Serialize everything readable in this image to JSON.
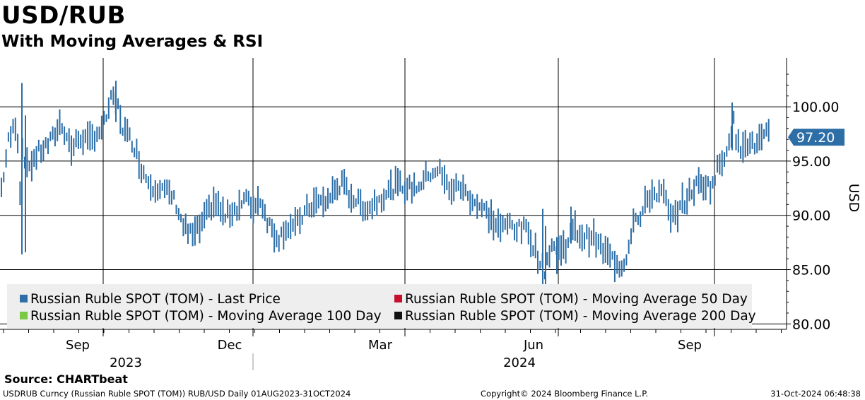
{
  "title": "USD/RUB",
  "subtitle": "With Moving Averages & RSI",
  "source": "Source: CHARTbeat",
  "footer": {
    "left": "USDRUB Curncy (Russian Ruble SPOT (TOM)) RUB/USD  Daily 01AUG2023-31OCT2024",
    "center": "Copyright© 2024 Bloomberg Finance L.P.",
    "right": "31-Oct-2024 06:48:38"
  },
  "colors": {
    "last_price": "#2d6ea6",
    "ma50": "#c8102e",
    "ma100": "#7ac943",
    "ma200": "#111111",
    "label_bg": "#2d6ea6"
  },
  "chart_data": {
    "type": "bar",
    "style": "ohlc-daily",
    "yaxis_label": "USD",
    "ylim": [
      79.5,
      104.5
    ],
    "yticks": [
      "100.00",
      "95.00",
      "90.00",
      "85.00",
      "80.00"
    ],
    "ytick_values": [
      100,
      95,
      90,
      85,
      80
    ],
    "last_value_label": "97.20",
    "last_value": 97.2,
    "month_ticks": [
      "Sep",
      "Dec",
      "Mar",
      "Jun",
      "Sep"
    ],
    "year_labels": [
      "2023",
      "2024"
    ],
    "legend": [
      "Russian Ruble SPOT (TOM) - Last Price",
      "Russian Ruble SPOT (TOM) - Moving Average 50 Day",
      "Russian Ruble SPOT (TOM) - Moving Average 100 Day",
      "Russian Ruble SPOT (TOM) - Moving Average 200 Day"
    ],
    "price_path": [
      [
        0,
        92.5
      ],
      [
        5,
        94.5
      ],
      [
        10,
        96.8
      ],
      [
        16,
        97.8
      ],
      [
        22,
        98.8
      ],
      [
        26,
        92.0
      ],
      [
        30,
        96.5
      ],
      [
        36,
        94.3
      ],
      [
        44,
        95.0
      ],
      [
        52,
        95.8
      ],
      [
        60,
        96.2
      ],
      [
        70,
        96.8
      ],
      [
        78,
        97.8
      ],
      [
        84,
        98.6
      ],
      [
        92,
        97.4
      ],
      [
        100,
        96.0
      ],
      [
        108,
        97.0
      ],
      [
        115,
        97.2
      ],
      [
        122,
        96.8
      ],
      [
        128,
        97.0
      ],
      [
        134,
        97.6
      ],
      [
        142,
        97.8
      ],
      [
        148,
        99.0
      ],
      [
        154,
        100.5
      ],
      [
        160,
        100.6
      ],
      [
        166,
        99.8
      ],
      [
        172,
        98.0
      ],
      [
        180,
        97.2
      ],
      [
        186,
        96.8
      ],
      [
        192,
        95.6
      ],
      [
        198,
        94.4
      ],
      [
        206,
        93.4
      ],
      [
        214,
        92.8
      ],
      [
        222,
        92.6
      ],
      [
        230,
        92.2
      ],
      [
        240,
        91.9
      ],
      [
        248,
        91.0
      ],
      [
        256,
        89.2
      ],
      [
        264,
        88.4
      ],
      [
        272,
        88.2
      ],
      [
        280,
        88.8
      ],
      [
        288,
        89.6
      ],
      [
        296,
        90.8
      ],
      [
        302,
        91.3
      ],
      [
        310,
        90.4
      ],
      [
        318,
        89.8
      ],
      [
        324,
        90.4
      ],
      [
        330,
        90.6
      ],
      [
        338,
        91.0
      ],
      [
        346,
        91.6
      ],
      [
        352,
        90.8
      ],
      [
        360,
        91.0
      ],
      [
        366,
        91.6
      ],
      [
        372,
        90.4
      ],
      [
        378,
        89.3
      ],
      [
        386,
        88.4
      ],
      [
        394,
        87.9
      ],
      [
        400,
        88.8
      ],
      [
        408,
        89.0
      ],
      [
        416,
        88.9
      ],
      [
        424,
        89.8
      ],
      [
        432,
        90.4
      ],
      [
        440,
        91.0
      ],
      [
        448,
        91.2
      ],
      [
        456,
        91.1
      ],
      [
        464,
        91.6
      ],
      [
        470,
        92.2
      ],
      [
        476,
        92.6
      ],
      [
        482,
        92.9
      ],
      [
        490,
        92.1
      ],
      [
        496,
        91.7
      ],
      [
        504,
        91.2
      ],
      [
        512,
        90.9
      ],
      [
        520,
        90.6
      ],
      [
        528,
        91.2
      ],
      [
        536,
        91.6
      ],
      [
        544,
        92.1
      ],
      [
        552,
        92.4
      ],
      [
        560,
        92.8
      ],
      [
        566,
        92.6
      ],
      [
        572,
        92.6
      ],
      [
        580,
        92.5
      ],
      [
        588,
        92.7
      ],
      [
        596,
        93.1
      ],
      [
        604,
        93.8
      ],
      [
        612,
        94.1
      ],
      [
        620,
        94.2
      ],
      [
        626,
        93.2
      ],
      [
        632,
        92.6
      ],
      [
        640,
        92.4
      ],
      [
        648,
        92.8
      ],
      [
        656,
        92.1
      ],
      [
        664,
        91.6
      ],
      [
        672,
        91.1
      ],
      [
        680,
        90.6
      ],
      [
        688,
        90.2
      ],
      [
        696,
        89.4
      ],
      [
        704,
        89.0
      ],
      [
        712,
        88.8
      ],
      [
        720,
        89.4
      ],
      [
        728,
        88.8
      ],
      [
        736,
        88.7
      ],
      [
        744,
        88.8
      ],
      [
        752,
        87.4
      ],
      [
        758,
        86.4
      ],
      [
        764,
        85.6
      ],
      [
        768,
        84.8
      ],
      [
        774,
        86.4
      ],
      [
        780,
        87.5
      ],
      [
        786,
        86.6
      ],
      [
        792,
        87.0
      ],
      [
        798,
        87.2
      ],
      [
        806,
        88.2
      ],
      [
        812,
        88.6
      ],
      [
        818,
        88.3
      ],
      [
        826,
        87.9
      ],
      [
        834,
        88.2
      ],
      [
        842,
        87.6
      ],
      [
        850,
        86.8
      ],
      [
        858,
        86.4
      ],
      [
        864,
        86.0
      ],
      [
        872,
        85.5
      ],
      [
        878,
        85.4
      ],
      [
        884,
        86.2
      ],
      [
        888,
        87.2
      ],
      [
        892,
        89.0
      ],
      [
        896,
        90.6
      ],
      [
        902,
        89.2
      ],
      [
        908,
        90.4
      ],
      [
        914,
        91.5
      ],
      [
        920,
        91.9
      ],
      [
        926,
        92.1
      ],
      [
        934,
        92.0
      ],
      [
        940,
        91.6
      ],
      [
        946,
        89.4
      ],
      [
        952,
        89.8
      ],
      [
        958,
        90.6
      ],
      [
        966,
        91.2
      ],
      [
        972,
        91.7
      ],
      [
        978,
        92.4
      ],
      [
        984,
        92.8
      ],
      [
        990,
        92.9
      ],
      [
        996,
        93.0
      ],
      [
        1002,
        92.6
      ],
      [
        1008,
        93.0
      ],
      [
        1014,
        94.5
      ],
      [
        1020,
        95.0
      ],
      [
        1026,
        96.2
      ],
      [
        1032,
        97.6
      ],
      [
        1036,
        98.6
      ],
      [
        1040,
        96.6
      ],
      [
        1046,
        96.2
      ],
      [
        1052,
        97.2
      ],
      [
        1058,
        96.5
      ],
      [
        1064,
        96.4
      ],
      [
        1070,
        96.8
      ],
      [
        1076,
        97.0
      ],
      [
        1082,
        97.4
      ],
      [
        1088,
        97.2
      ]
    ],
    "spikes": [
      [
        29,
        86.4,
        102.2
      ],
      [
        34,
        86.6,
        99.2
      ],
      [
        162,
        98.6,
        102.4
      ],
      [
        766,
        83.0,
        90.6
      ],
      [
        770,
        82.2,
        89.0
      ],
      [
        786,
        84.6,
        88.0
      ],
      [
        806,
        87.4,
        90.8
      ],
      [
        1034,
        96.0,
        100.4
      ]
    ]
  }
}
